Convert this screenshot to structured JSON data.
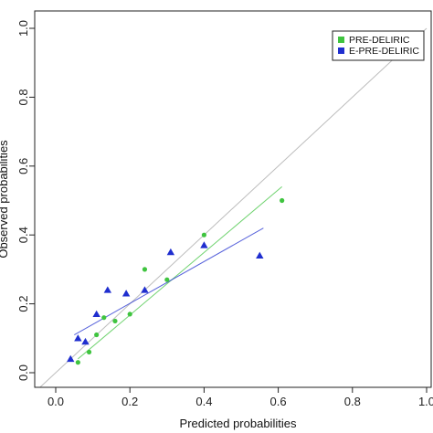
{
  "chart_data": {
    "type": "scatter",
    "xlabel": "Predicted probabilities",
    "ylabel": "Observed probabilities",
    "xlim": [
      0,
      1.0
    ],
    "ylim": [
      0,
      1.0
    ],
    "x_ticks": [
      "0.0",
      "0.2",
      "0.4",
      "0.6",
      "0.8",
      "1.0"
    ],
    "y_ticks": [
      "0.0",
      "0.2",
      "0.4",
      "0.6",
      "0.8",
      "1.0"
    ],
    "grid": false,
    "reference_line": {
      "from": [
        0,
        0
      ],
      "to": [
        1,
        1
      ],
      "color": "#bdbdbd"
    },
    "legend": {
      "position": "top-right"
    },
    "series": [
      {
        "name": "PRE-DELIRIC",
        "color": "#3fc43f",
        "marker": "circle",
        "points": [
          {
            "x": 0.06,
            "y": 0.03
          },
          {
            "x": 0.09,
            "y": 0.06
          },
          {
            "x": 0.11,
            "y": 0.11
          },
          {
            "x": 0.13,
            "y": 0.16
          },
          {
            "x": 0.16,
            "y": 0.15
          },
          {
            "x": 0.2,
            "y": 0.17
          },
          {
            "x": 0.24,
            "y": 0.3
          },
          {
            "x": 0.3,
            "y": 0.27
          },
          {
            "x": 0.4,
            "y": 0.4
          },
          {
            "x": 0.61,
            "y": 0.5
          }
        ],
        "fit_line": {
          "from": [
            0.06,
            0.04
          ],
          "to": [
            0.61,
            0.54
          ]
        }
      },
      {
        "name": "E-PRE-DELIRIC",
        "color": "#1f2ecf",
        "marker": "triangle",
        "points": [
          {
            "x": 0.04,
            "y": 0.04
          },
          {
            "x": 0.06,
            "y": 0.1
          },
          {
            "x": 0.08,
            "y": 0.09
          },
          {
            "x": 0.11,
            "y": 0.17
          },
          {
            "x": 0.14,
            "y": 0.24
          },
          {
            "x": 0.19,
            "y": 0.23
          },
          {
            "x": 0.24,
            "y": 0.24
          },
          {
            "x": 0.31,
            "y": 0.35
          },
          {
            "x": 0.4,
            "y": 0.37
          },
          {
            "x": 0.55,
            "y": 0.34
          }
        ],
        "fit_line": {
          "from": [
            0.05,
            0.11
          ],
          "to": [
            0.56,
            0.42
          ]
        }
      }
    ]
  }
}
